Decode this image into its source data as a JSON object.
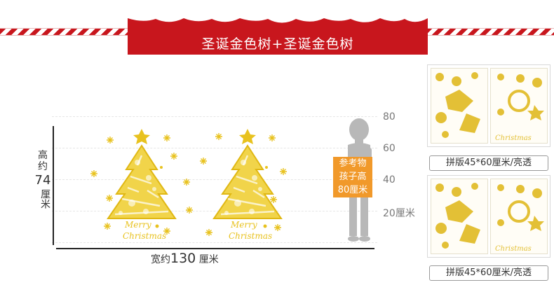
{
  "banner": {
    "title": "圣诞金色树+圣诞金色树",
    "color": "#c8161d"
  },
  "measure": {
    "height_label_top": "高约",
    "height_value": "74",
    "height_unit": "厘米",
    "width_prefix": "宽约",
    "width_value": "130",
    "width_unit": "厘米"
  },
  "scale": {
    "marks": [
      "80",
      "60",
      "40",
      "20厘米"
    ]
  },
  "reference": {
    "line1": "参考物",
    "line2": "孩子高",
    "line3": "80厘米",
    "color": "#f1992a"
  },
  "trees": {
    "text_line1": "Merry",
    "text_line2": "Christmas",
    "gold": "#e8c21f"
  },
  "thumbnails": [
    {
      "label": "拼版45*60厘米/亮透",
      "panel_text": "Christmas"
    },
    {
      "label": "拼版45*60厘米/亮透",
      "panel_text": "Christmas"
    }
  ],
  "icons": [
    "snowflake-icon",
    "star-icon",
    "child-silhouette-icon"
  ]
}
